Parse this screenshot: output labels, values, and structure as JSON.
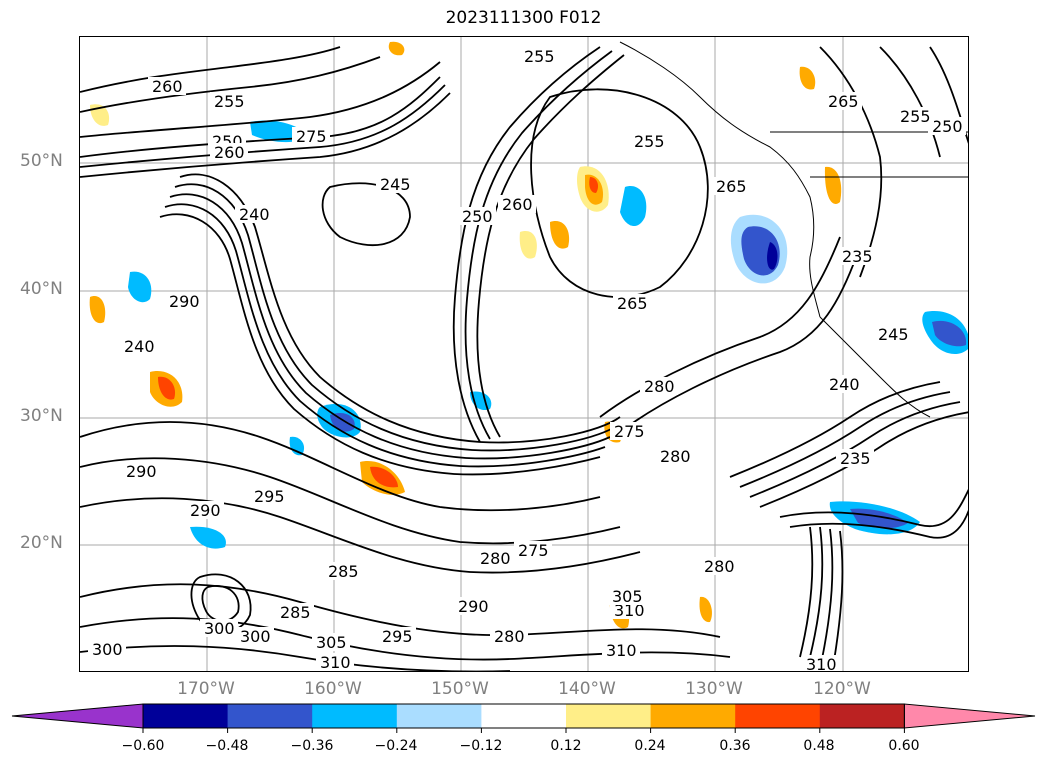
{
  "title": "2023111300 F012",
  "axes": {
    "lat_labels": [
      "50°N",
      "40°N",
      "30°N",
      "20°N"
    ],
    "lon_labels": [
      "170°W",
      "160°W",
      "150°W",
      "140°W",
      "130°W",
      "120°W"
    ]
  },
  "contour_labels": [
    "260",
    "255",
    "250",
    "260",
    "275",
    "245",
    "240",
    "250",
    "260",
    "255",
    "265",
    "280",
    "290",
    "265",
    "240",
    "235",
    "245",
    "280",
    "275",
    "280",
    "290",
    "295",
    "290",
    "285",
    "280",
    "275",
    "300",
    "300",
    "285",
    "305",
    "310",
    "290",
    "310",
    "305",
    "295",
    "280",
    "300",
    "310",
    "310",
    "235",
    "240",
    "250",
    "255",
    "265",
    "255"
  ],
  "colorbar": {
    "ticks": [
      "−0.60",
      "−0.48",
      "−0.36",
      "−0.24",
      "−0.12",
      "0.12",
      "0.24",
      "0.36",
      "0.48",
      "0.60"
    ],
    "colors": [
      "#9933cc",
      "#000099",
      "#3355cc",
      "#00bbff",
      "#aaddff",
      "#ffffff",
      "#ffee88",
      "#ffaa00",
      "#ff4400",
      "#bb2222",
      "#ff88aa"
    ],
    "under_color": "#9933cc",
    "over_color": "#ff88aa"
  }
}
